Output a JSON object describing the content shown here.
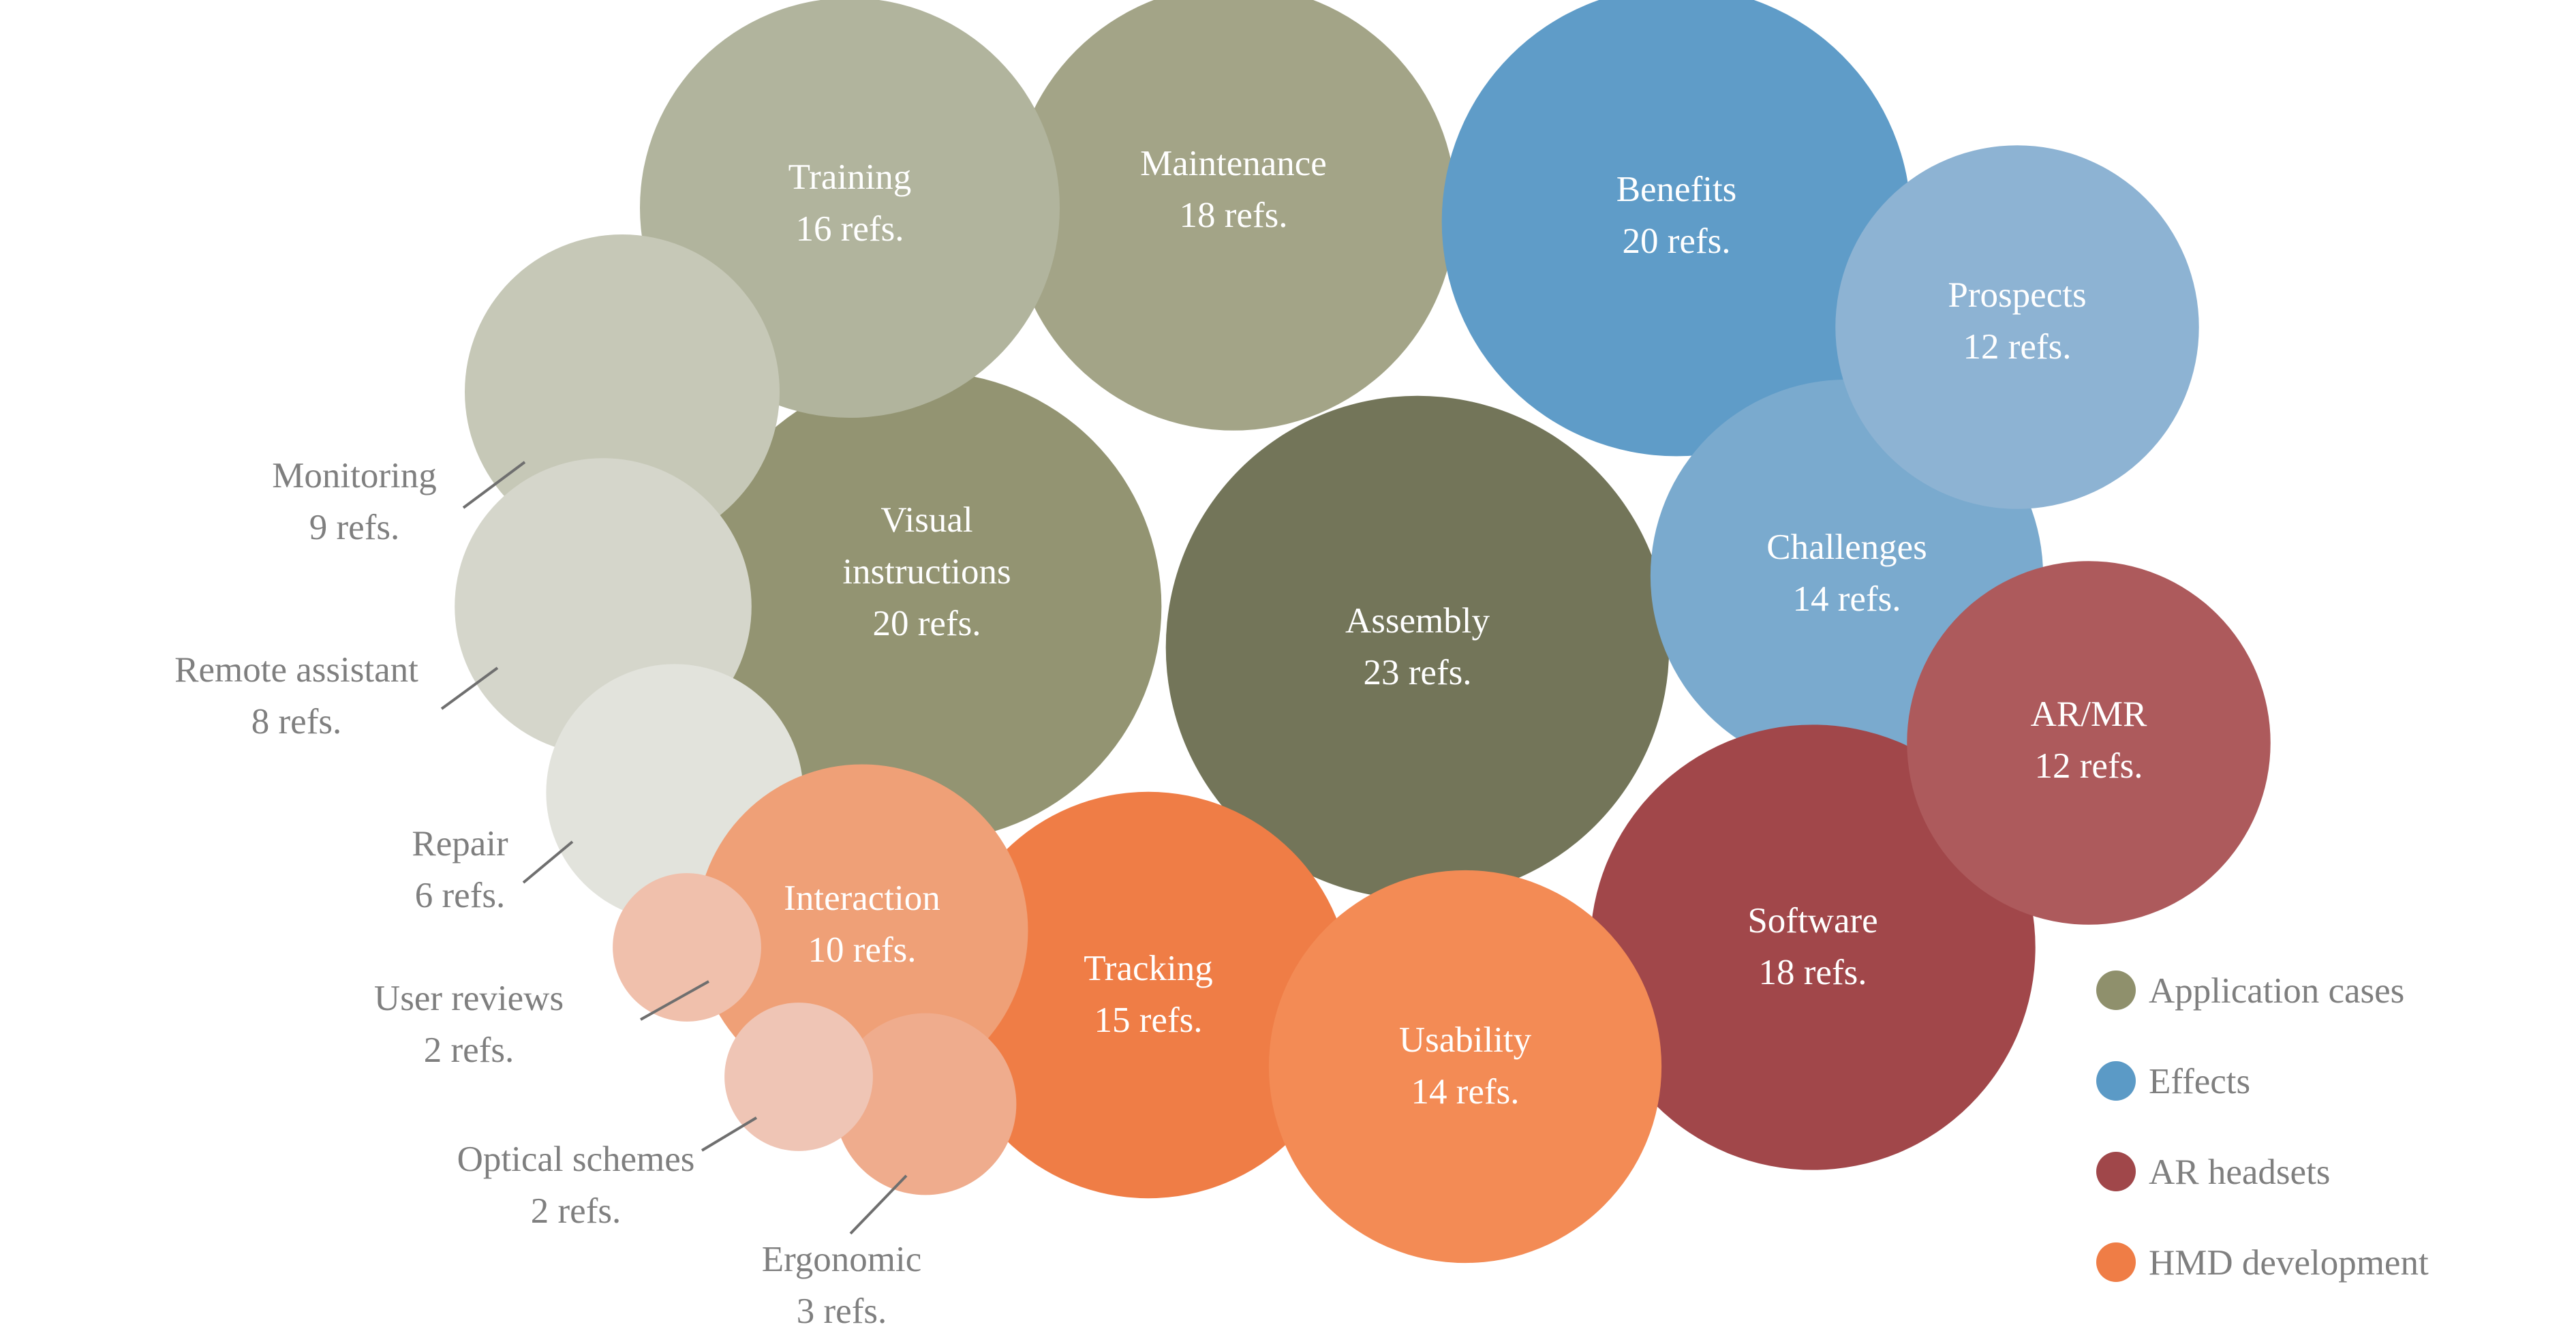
{
  "chart_data": {
    "type": "bubble",
    "title": "",
    "unit_suffix": "refs.",
    "groups": [
      {
        "name": "Application cases",
        "color": "#8F906C"
      },
      {
        "name": "Effects",
        "color": "#5B9AC6"
      },
      {
        "name": "AR headsets",
        "color": "#A0474A"
      },
      {
        "name": "HMD development",
        "color": "#EF7D46"
      }
    ],
    "bubbles": [
      {
        "topic": "Assembly",
        "refs": 23,
        "refs_label": "23 refs.",
        "group": "Application cases",
        "color": "#737559"
      },
      {
        "topic": "Visual instructions",
        "refs": 20,
        "refs_label": "20 refs.",
        "group": "Application cases",
        "color": "#939472"
      },
      {
        "topic": "Maintenance",
        "refs": 18,
        "refs_label": "18 refs.",
        "group": "Application cases",
        "color": "#A3A487"
      },
      {
        "topic": "Training",
        "refs": 16,
        "refs_label": "16 refs.",
        "group": "Application cases",
        "color": "#B1B49D"
      },
      {
        "topic": "Monitoring",
        "refs": 9,
        "refs_label": "9 refs.",
        "group": "Application cases",
        "color": "#C6C8B7"
      },
      {
        "topic": "Remote assistant",
        "refs": 8,
        "refs_label": "8 refs.",
        "group": "Application cases",
        "color": "#D5D6CB"
      },
      {
        "topic": "Repair",
        "refs": 6,
        "refs_label": "6 refs.",
        "group": "Application cases",
        "color": "#E2E3DC"
      },
      {
        "topic": "Benefits",
        "refs": 20,
        "refs_label": "20 refs.",
        "group": "Effects",
        "color": "#5F9CC8"
      },
      {
        "topic": "Challenges",
        "refs": 14,
        "refs_label": "14 refs.",
        "group": "Effects",
        "color": "#7AAACE"
      },
      {
        "topic": "Prospects",
        "refs": 12,
        "refs_label": "12 refs.",
        "group": "Effects",
        "color": "#8DB3D3"
      },
      {
        "topic": "Software",
        "refs": 18,
        "refs_label": "18 refs.",
        "group": "AR headsets",
        "color": "#A1474A"
      },
      {
        "topic": "AR/MR",
        "refs": 12,
        "refs_label": "12 refs.",
        "group": "AR headsets",
        "color": "#AD5A5C"
      },
      {
        "topic": "Tracking",
        "refs": 15,
        "refs_label": "15 refs.",
        "group": "HMD development",
        "color": "#EF7D46"
      },
      {
        "topic": "Usability",
        "refs": 14,
        "refs_label": "14 refs.",
        "group": "HMD development",
        "color": "#F38B55"
      },
      {
        "topic": "Interaction",
        "refs": 10,
        "refs_label": "10 refs.",
        "group": "HMD development",
        "color": "#EFA077"
      },
      {
        "topic": "Ergonomic",
        "refs": 3,
        "refs_label": "3 refs.",
        "group": "HMD development",
        "color": "#EFAC8D"
      },
      {
        "topic": "User reviews",
        "refs": 2,
        "refs_label": "2 refs.",
        "group": "HMD development",
        "color": "#F0C0AC"
      },
      {
        "topic": "Optical schemes",
        "refs": 2,
        "refs_label": "2 refs.",
        "group": "HMD development",
        "color": "#EFC5B5"
      }
    ],
    "legend_position": "bottom-right"
  }
}
